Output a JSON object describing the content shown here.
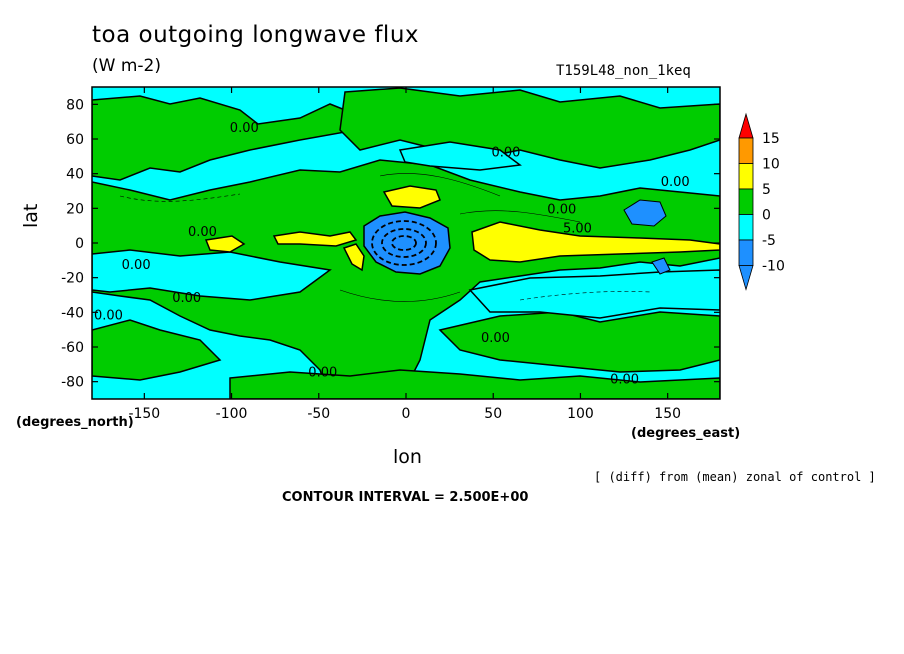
{
  "header": {
    "title": "toa outgoing longwave flux",
    "units": "(W m-2)",
    "run": "T159L48_non_1keq"
  },
  "footer": {
    "note": "[ (diff) from (mean) zonal of control ]",
    "contour_interval": "CONTOUR INTERVAL = 2.500E+00"
  },
  "chart_data": {
    "type": "heatmap",
    "title": "toa outgoing longwave flux",
    "units": "(W m-2)",
    "xlabel": "lon",
    "xlabel_units": "(degrees_east)",
    "ylabel": "lat",
    "ylabel_units": "(degrees_north)",
    "xlim": [
      -180,
      180
    ],
    "ylim": [
      -90,
      90
    ],
    "x_ticks": [
      -150,
      -100,
      -50,
      0,
      50,
      100,
      150
    ],
    "y_ticks": [
      -80,
      -60,
      -40,
      -20,
      0,
      20,
      40,
      60,
      80
    ],
    "colorbar": {
      "levels": [
        -10,
        -5,
        0,
        5,
        10,
        15
      ],
      "colors": [
        "#1e90ff",
        "#00ffff",
        "#00cc00",
        "#ffff00",
        "#ff9900",
        "#ff0000"
      ],
      "bins": [
        {
          "from": null,
          "to": -10,
          "color": "#1e90ff"
        },
        {
          "from": -10,
          "to": -5,
          "color": "#1e90ff"
        },
        {
          "from": -5,
          "to": 0,
          "color": "#00ffff"
        },
        {
          "from": 0,
          "to": 5,
          "color": "#00cc00"
        },
        {
          "from": 5,
          "to": 10,
          "color": "#ffff00"
        },
        {
          "from": 10,
          "to": 15,
          "color": "#ff9900"
        },
        {
          "from": 15,
          "to": null,
          "color": "#ff0000"
        }
      ]
    },
    "contour_labels": [
      {
        "text": "0.00",
        "lon": -101,
        "lat": 64
      },
      {
        "text": "0.00",
        "lon": 49,
        "lat": 50
      },
      {
        "text": "0.00",
        "lon": 146,
        "lat": 33
      },
      {
        "text": "0.00",
        "lon": 81,
        "lat": 17
      },
      {
        "text": "0.00",
        "lon": -163,
        "lat": -15
      },
      {
        "text": "0.00",
        "lon": -125,
        "lat": 4
      },
      {
        "text": "5.00",
        "lon": 90,
        "lat": 6
      },
      {
        "text": "0.00",
        "lon": -134,
        "lat": -34
      },
      {
        "text": "0.00",
        "lon": -196,
        "lat": -44
      },
      {
        "text": "0.00",
        "lon": 43,
        "lat": -57
      },
      {
        "text": "0.00",
        "lon": -56,
        "lat": -77
      },
      {
        "text": "0.00",
        "lon": 117,
        "lat": -81
      }
    ],
    "regions": [
      {
        "value_bin": "-5 to 0",
        "lon": [
          -180,
          180
        ],
        "lat": [
          -90,
          90
        ],
        "desc": "background"
      },
      {
        "value_bin": "0 to 5",
        "lon": [
          -180,
          180
        ],
        "lat": [
          -30,
          40
        ],
        "desc": "tropical band and continents"
      },
      {
        "value_bin": "5 to 10",
        "lon": [
          -10,
          20
        ],
        "lat": [
          20,
          28
        ],
        "desc": "northern Africa patch"
      },
      {
        "value_bin": "5 to 10",
        "lon": [
          50,
          180
        ],
        "lat": [
          -8,
          8
        ],
        "desc": "Indian/Pacific warm band"
      },
      {
        "value_bin": "-10 to -5",
        "lon": [
          -30,
          30
        ],
        "lat": [
          -20,
          20
        ],
        "desc": "central negative anomaly"
      },
      {
        "value_bin": "-10 to -5",
        "lon": [
          120,
          150
        ],
        "lat": [
          8,
          28
        ],
        "desc": "western Pacific patch"
      }
    ]
  }
}
